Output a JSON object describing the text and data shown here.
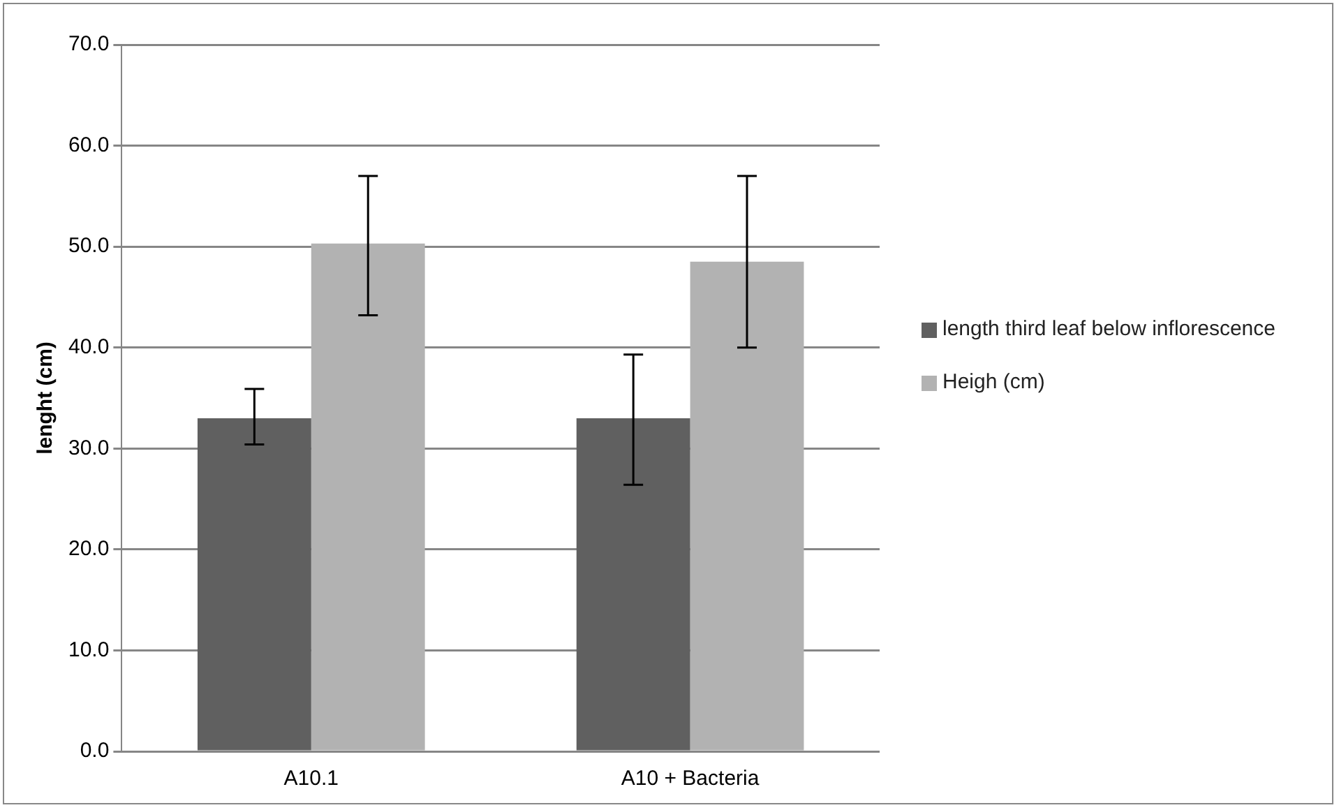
{
  "chart_data": {
    "type": "bar",
    "ylabel": "lenght (cm)",
    "categories": [
      "A10.1",
      "A10 + Bacteria"
    ],
    "series": [
      {
        "name": "length third leaf below inflorescence",
        "color": "#606060",
        "values": [
          33.0,
          33.0
        ],
        "errors": [
          [
            30.4,
            35.9
          ],
          [
            26.4,
            39.3
          ]
        ]
      },
      {
        "name": "Heigh (cm)",
        "color": "#b2b2b2",
        "values": [
          50.3,
          48.5
        ],
        "errors": [
          [
            43.2,
            57.0
          ],
          [
            40.0,
            57.0
          ]
        ]
      }
    ],
    "ylim": [
      0,
      70
    ],
    "yticks": [
      {
        "value": 0,
        "label": "0.0"
      },
      {
        "value": 10,
        "label": "10.0"
      },
      {
        "value": 20,
        "label": "20.0"
      },
      {
        "value": 30,
        "label": "30.0"
      },
      {
        "value": 40,
        "label": "40.0"
      },
      {
        "value": 50,
        "label": "50.0"
      },
      {
        "value": 60,
        "label": "60.0"
      },
      {
        "value": 70,
        "label": "70.0"
      }
    ],
    "grid": "y",
    "legend": "right"
  }
}
